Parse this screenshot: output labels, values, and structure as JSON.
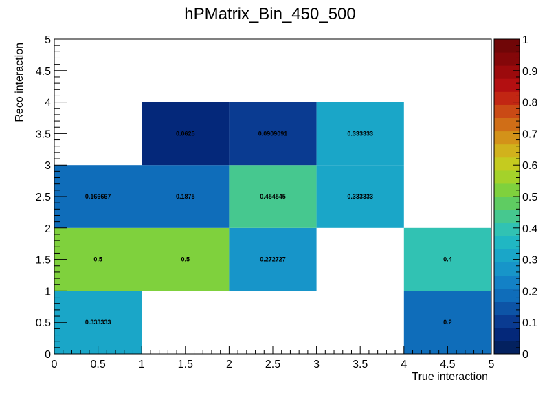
{
  "chart_data": {
    "type": "heatmap",
    "title": "hPMatrix_Bin_450_500",
    "xlabel": "True interaction",
    "ylabel": "Reco interaction",
    "xlim": [
      0,
      5
    ],
    "ylim": [
      0,
      5
    ],
    "zlim": [
      0,
      1
    ],
    "x_ticks": [
      "0",
      "0.5",
      "1",
      "1.5",
      "2",
      "2.5",
      "3",
      "3.5",
      "4",
      "4.5",
      "5"
    ],
    "y_ticks": [
      "0",
      "0.5",
      "1",
      "1.5",
      "2",
      "2.5",
      "3",
      "3.5",
      "4",
      "4.5",
      "5"
    ],
    "z_ticks": [
      "0",
      "0.1",
      "0.2",
      "0.3",
      "0.4",
      "0.5",
      "0.6",
      "0.7",
      "0.8",
      "0.9",
      "1"
    ],
    "palette": [
      "#03215f",
      "#04287a",
      "#0a3b91",
      "#0d54a6",
      "#0f6dba",
      "#1381c6",
      "#1795c9",
      "#1aa6c8",
      "#20b7c3",
      "#31c2b3",
      "#46c88f",
      "#5fcc62",
      "#7fd13d",
      "#a4d22a",
      "#c5cb1f",
      "#d1b21c",
      "#d39219",
      "#d06e17",
      "#ca4a15",
      "#c22613",
      "#b30f11",
      "#9c0a0c",
      "#840709",
      "#700607"
    ],
    "cells": [
      {
        "x": [
          0,
          1
        ],
        "y": [
          0,
          1
        ],
        "value": 0.333333,
        "label": "0.333333"
      },
      {
        "x": [
          4,
          5
        ],
        "y": [
          0,
          1
        ],
        "value": 0.2,
        "label": "0.2"
      },
      {
        "x": [
          0,
          1
        ],
        "y": [
          1,
          2
        ],
        "value": 0.5,
        "label": "0.5"
      },
      {
        "x": [
          1,
          2
        ],
        "y": [
          1,
          2
        ],
        "value": 0.5,
        "label": "0.5"
      },
      {
        "x": [
          2,
          3
        ],
        "y": [
          1,
          2
        ],
        "value": 0.272727,
        "label": "0.272727"
      },
      {
        "x": [
          4,
          5
        ],
        "y": [
          1,
          2
        ],
        "value": 0.4,
        "label": "0.4"
      },
      {
        "x": [
          0,
          1
        ],
        "y": [
          2,
          3
        ],
        "value": 0.166667,
        "label": "0.166667"
      },
      {
        "x": [
          1,
          2
        ],
        "y": [
          2,
          3
        ],
        "value": 0.1875,
        "label": "0.1875"
      },
      {
        "x": [
          2,
          3
        ],
        "y": [
          2,
          3
        ],
        "value": 0.454545,
        "label": "0.454545"
      },
      {
        "x": [
          3,
          4
        ],
        "y": [
          2,
          3
        ],
        "value": 0.333333,
        "label": "0.333333"
      },
      {
        "x": [
          1,
          2
        ],
        "y": [
          3,
          4
        ],
        "value": 0.0625,
        "label": "0.0625"
      },
      {
        "x": [
          2,
          3
        ],
        "y": [
          3,
          4
        ],
        "value": 0.0909091,
        "label": "0.0909091"
      },
      {
        "x": [
          3,
          4
        ],
        "y": [
          3,
          4
        ],
        "value": 0.333333,
        "label": "0.333333"
      }
    ]
  }
}
